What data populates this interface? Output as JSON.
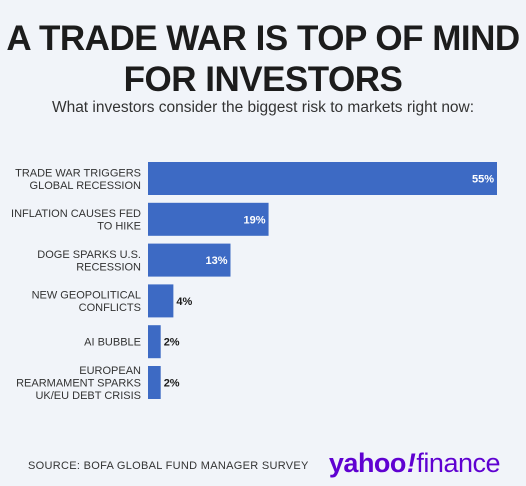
{
  "header": {
    "title_line1": "A TRADE WAR IS TOP OF MIND",
    "title_line2": "FOR INVESTORS",
    "subtitle": "What investors consider the biggest risk to markets right now:"
  },
  "chart_data": {
    "type": "bar",
    "orientation": "horizontal",
    "categories": [
      [
        "TRADE WAR TRIGGERS",
        "GLOBAL RECESSION"
      ],
      [
        "INFLATION CAUSES FED",
        "TO HIKE"
      ],
      [
        "DOGE SPARKS U.S.",
        "RECESSION"
      ],
      [
        "NEW GEOPOLITICAL",
        "CONFLICTS"
      ],
      [
        "AI BUBBLE"
      ],
      [
        "EUROPEAN",
        "REARMAMENT SPARKS",
        "UK/EU DEBT CRISIS"
      ]
    ],
    "values": [
      55,
      19,
      13,
      4,
      2,
      2
    ],
    "value_labels": [
      "55%",
      "19%",
      "13%",
      "4%",
      "2%",
      "2%"
    ],
    "unit": "%",
    "bar_color": "#3d6ac4",
    "label_color_inside": "#ffffff",
    "label_color_outside": "#1a1a1a",
    "xlim": [
      0,
      55
    ],
    "grid": false,
    "legend": "none"
  },
  "footer": {
    "source": "SOURCE: BOFA GLOBAL FUND MANAGER SURVEY",
    "logo_yahoo": "yahoo",
    "logo_bang": "!",
    "logo_finance": "finance"
  },
  "colors": {
    "background": "#f1f4f9",
    "brand": "#5f01d1"
  }
}
